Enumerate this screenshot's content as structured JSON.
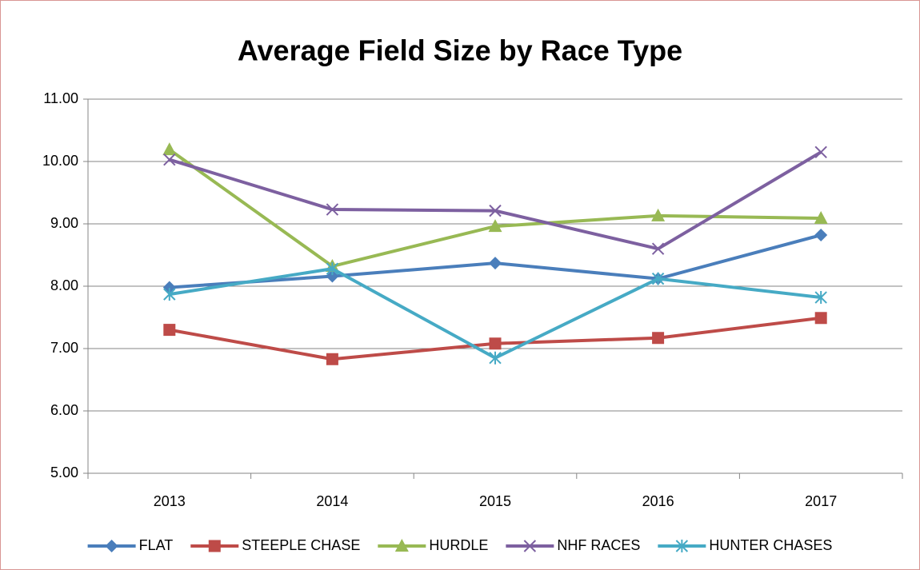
{
  "chart_data": {
    "type": "line",
    "title": "Average Field Size by Race Type",
    "categories": [
      "2013",
      "2014",
      "2015",
      "2016",
      "2017"
    ],
    "series": [
      {
        "name": "FLAT",
        "color": "#4a7ebb",
        "marker": "diamond",
        "values": [
          7.98,
          8.16,
          8.37,
          8.12,
          8.82
        ]
      },
      {
        "name": "STEEPLE CHASE",
        "color": "#be4b48",
        "marker": "square",
        "values": [
          7.3,
          6.83,
          7.08,
          7.17,
          7.49
        ]
      },
      {
        "name": "HURDLE",
        "color": "#98b954",
        "marker": "triangle",
        "values": [
          10.19,
          8.32,
          8.96,
          9.13,
          9.09
        ]
      },
      {
        "name": "NHF RACES",
        "color": "#7d60a0",
        "marker": "x",
        "values": [
          10.03,
          9.23,
          9.21,
          8.6,
          10.15
        ]
      },
      {
        "name": "HUNTER CHASES",
        "color": "#46aac5",
        "marker": "asterisk",
        "values": [
          7.87,
          8.28,
          6.85,
          8.12,
          7.82
        ]
      }
    ],
    "ylim": [
      5,
      11
    ],
    "yticks": [
      {
        "value": 5,
        "label": "5.00"
      },
      {
        "value": 6,
        "label": "6.00"
      },
      {
        "value": 7,
        "label": "7.00"
      },
      {
        "value": 8,
        "label": "8.00"
      },
      {
        "value": 9,
        "label": "9.00"
      },
      {
        "value": 10,
        "label": "10.00"
      },
      {
        "value": 11,
        "label": "11.00"
      }
    ],
    "grid": true,
    "legend": "bottom"
  }
}
